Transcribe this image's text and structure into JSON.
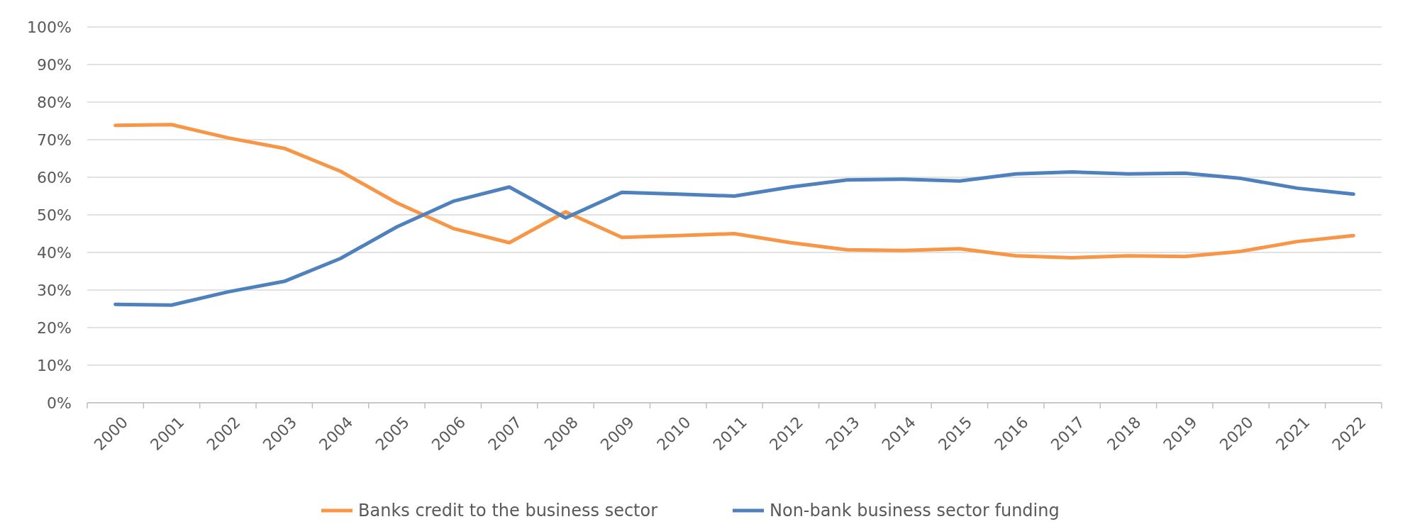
{
  "chart_data": {
    "type": "line",
    "categories": [
      "2000",
      "2001",
      "2002",
      "2003",
      "2004",
      "2005",
      "2006",
      "2007",
      "2008",
      "2009",
      "2010",
      "2011",
      "2012",
      "2013",
      "2014",
      "2015",
      "2016",
      "2017",
      "2018",
      "2019",
      "2020",
      "2021",
      "2022"
    ],
    "series": [
      {
        "name": "Banks credit to the business sector",
        "color": "#f79646",
        "values": [
          73.8,
          74,
          70.5,
          67.7,
          61.6,
          53.2,
          46.4,
          42.6,
          50.8,
          44,
          44.5,
          45,
          42.6,
          40.7,
          40.5,
          41,
          39.1,
          38.6,
          39.1,
          38.9,
          40.3,
          42.9,
          44.5
        ]
      },
      {
        "name": "Non-bank business sector funding",
        "color": "#4f81bd",
        "values": [
          26.2,
          26,
          29.5,
          32.3,
          38.4,
          46.8,
          53.6,
          57.4,
          49.2,
          56,
          55.5,
          55,
          57.4,
          59.3,
          59.5,
          59,
          60.9,
          61.4,
          60.9,
          61.1,
          59.7,
          57.1,
          55.5
        ]
      }
    ],
    "ylim": [
      0,
      100
    ],
    "yticks": [
      {
        "value": 0,
        "label": "0%"
      },
      {
        "value": 10,
        "label": "10%"
      },
      {
        "value": 20,
        "label": "20%"
      },
      {
        "value": 30,
        "label": "30%"
      },
      {
        "value": 40,
        "label": "40%"
      },
      {
        "value": 50,
        "label": "50%"
      },
      {
        "value": 60,
        "label": "60%"
      },
      {
        "value": 70,
        "label": "70%"
      },
      {
        "value": 80,
        "label": "80%"
      },
      {
        "value": 90,
        "label": "90%"
      },
      {
        "value": 100,
        "label": "100%"
      }
    ],
    "grid": "y",
    "legend": "bottom",
    "marker": "none",
    "line_style": "solid"
  }
}
